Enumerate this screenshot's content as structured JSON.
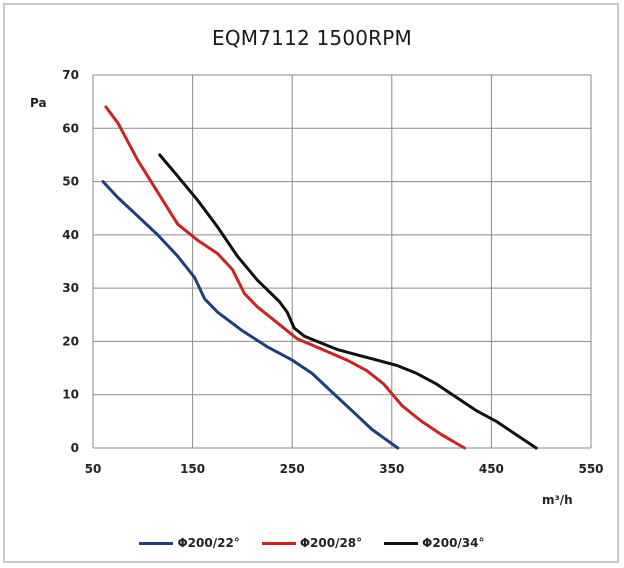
{
  "chart_data": {
    "type": "line",
    "title": "EQM7112  1500RPM",
    "ylabel": "Pa",
    "xlabel": "m³/h",
    "xlim": [
      50,
      550
    ],
    "ylim": [
      0,
      70
    ],
    "x_ticks": [
      50,
      150,
      250,
      350,
      450,
      550
    ],
    "y_ticks": [
      0,
      10,
      20,
      30,
      40,
      50,
      60,
      70
    ],
    "grid": true,
    "legend_position": "bottom",
    "series": [
      {
        "name": "Φ200/22°",
        "color": "#1f3d7a",
        "points": [
          [
            60,
            50
          ],
          [
            75,
            47
          ],
          [
            95,
            43.5
          ],
          [
            115,
            40
          ],
          [
            135,
            36
          ],
          [
            152,
            32
          ],
          [
            162,
            28
          ],
          [
            175,
            25.5
          ],
          [
            200,
            22
          ],
          [
            225,
            19
          ],
          [
            250,
            16.5
          ],
          [
            270,
            14
          ],
          [
            290,
            10.5
          ],
          [
            310,
            7
          ],
          [
            330,
            3.5
          ],
          [
            356,
            0
          ]
        ]
      },
      {
        "name": "Φ200/28°",
        "color": "#cc2222",
        "points": [
          [
            63,
            64
          ],
          [
            75,
            61
          ],
          [
            95,
            54
          ],
          [
            115,
            48
          ],
          [
            135,
            42
          ],
          [
            155,
            39
          ],
          [
            175,
            36.5
          ],
          [
            190,
            33.5
          ],
          [
            202,
            29
          ],
          [
            215,
            26.5
          ],
          [
            235,
            23.5
          ],
          [
            255,
            20.5
          ],
          [
            280,
            18.5
          ],
          [
            305,
            16.5
          ],
          [
            325,
            14.5
          ],
          [
            342,
            12
          ],
          [
            360,
            8
          ],
          [
            380,
            5
          ],
          [
            400,
            2.5
          ],
          [
            423,
            0
          ]
        ]
      },
      {
        "name": "Φ200/34°",
        "color": "#111111",
        "points": [
          [
            117,
            55
          ],
          [
            135,
            51
          ],
          [
            155,
            46.5
          ],
          [
            175,
            41.5
          ],
          [
            195,
            36
          ],
          [
            215,
            31.5
          ],
          [
            237,
            27.5
          ],
          [
            245,
            25.5
          ],
          [
            252,
            22.5
          ],
          [
            262,
            21
          ],
          [
            275,
            20
          ],
          [
            295,
            18.5
          ],
          [
            315,
            17.5
          ],
          [
            335,
            16.5
          ],
          [
            355,
            15.5
          ],
          [
            375,
            14
          ],
          [
            395,
            12
          ],
          [
            415,
            9.5
          ],
          [
            435,
            7
          ],
          [
            455,
            5
          ],
          [
            475,
            2.5
          ],
          [
            495,
            0
          ]
        ]
      }
    ]
  }
}
